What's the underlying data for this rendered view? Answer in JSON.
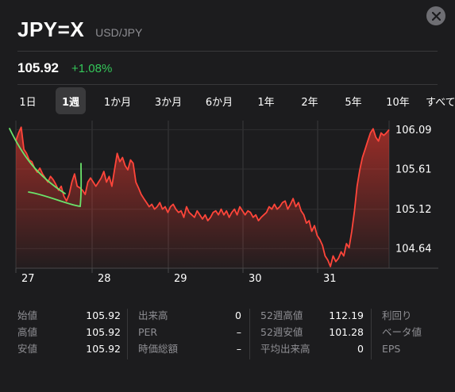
{
  "header": {
    "symbol": "JPY=X",
    "pair": "USD/JPY"
  },
  "quote": {
    "price": "105.92",
    "change": "+1.08%"
  },
  "colors": {
    "accent_green": "#34c759",
    "line_red": "#ff3b30",
    "annotation_green": "#6be36b"
  },
  "tabs": [
    {
      "label": "1日",
      "active": false
    },
    {
      "label": "1週",
      "active": true
    },
    {
      "label": "1か月",
      "active": false
    },
    {
      "label": "3か月",
      "active": false
    },
    {
      "label": "6か月",
      "active": false
    },
    {
      "label": "1年",
      "active": false
    },
    {
      "label": "2年",
      "active": false
    },
    {
      "label": "5年",
      "active": false
    },
    {
      "label": "10年",
      "active": false
    },
    {
      "label": "すべて",
      "active": false
    }
  ],
  "chart_data": {
    "type": "area",
    "x_ticks": [
      "27",
      "28",
      "29",
      "30",
      "31"
    ],
    "y_ticks": [
      106.09,
      105.61,
      105.12,
      104.64
    ],
    "ylim": [
      104.4,
      106.2
    ],
    "grid": true,
    "values": [
      105.95,
      106.05,
      106.12,
      105.85,
      105.8,
      105.72,
      105.7,
      105.62,
      105.57,
      105.62,
      105.55,
      105.5,
      105.45,
      105.52,
      105.48,
      105.42,
      105.35,
      105.4,
      105.28,
      105.22,
      105.3,
      105.45,
      105.55,
      105.4,
      105.38,
      105.35,
      105.3,
      105.45,
      105.5,
      105.45,
      105.4,
      105.45,
      105.5,
      105.58,
      105.45,
      105.52,
      105.4,
      105.6,
      105.8,
      105.7,
      105.75,
      105.65,
      105.6,
      105.72,
      105.68,
      105.45,
      105.38,
      105.3,
      105.25,
      105.2,
      105.15,
      105.18,
      105.12,
      105.15,
      105.2,
      105.12,
      105.15,
      105.08,
      105.15,
      105.18,
      105.12,
      105.08,
      105.1,
      105.02,
      105.15,
      105.08,
      105.05,
      105.02,
      105.1,
      105.05,
      105.0,
      105.05,
      104.98,
      105.02,
      105.08,
      105.1,
      105.05,
      105.12,
      105.05,
      105.1,
      105.02,
      105.08,
      105.12,
      105.05,
      105.15,
      105.1,
      105.05,
      105.1,
      105.08,
      105.02,
      105.05,
      104.98,
      105.02,
      105.05,
      105.08,
      105.15,
      105.12,
      105.18,
      105.12,
      105.15,
      105.2,
      105.22,
      105.12,
      105.18,
      105.25,
      105.15,
      105.2,
      105.1,
      105.05,
      104.95,
      104.98,
      104.85,
      104.92,
      104.8,
      104.75,
      104.68,
      104.55,
      104.5,
      104.42,
      104.55,
      104.48,
      104.52,
      104.6,
      104.55,
      104.7,
      104.65,
      104.85,
      105.1,
      105.4,
      105.6,
      105.75,
      105.85,
      105.95,
      106.05,
      106.1,
      106.0,
      105.95,
      106.05,
      106.02,
      106.05,
      106.09
    ]
  },
  "stats": {
    "col1": [
      {
        "label": "始値",
        "value": "105.92"
      },
      {
        "label": "高値",
        "value": "105.92"
      },
      {
        "label": "安値",
        "value": "105.92"
      }
    ],
    "col2": [
      {
        "label": "出来高",
        "value": "0"
      },
      {
        "label": "PER",
        "value": "–"
      },
      {
        "label": "時価総額",
        "value": "–"
      }
    ],
    "col3": [
      {
        "label": "52週高値",
        "value": "112.19"
      },
      {
        "label": "52週安値",
        "value": "101.28"
      },
      {
        "label": "平均出来高",
        "value": "0"
      }
    ],
    "col4": [
      {
        "label": "利回り",
        "value": ""
      },
      {
        "label": "ベータ値",
        "value": ""
      },
      {
        "label": "EPS",
        "value": ""
      }
    ]
  }
}
